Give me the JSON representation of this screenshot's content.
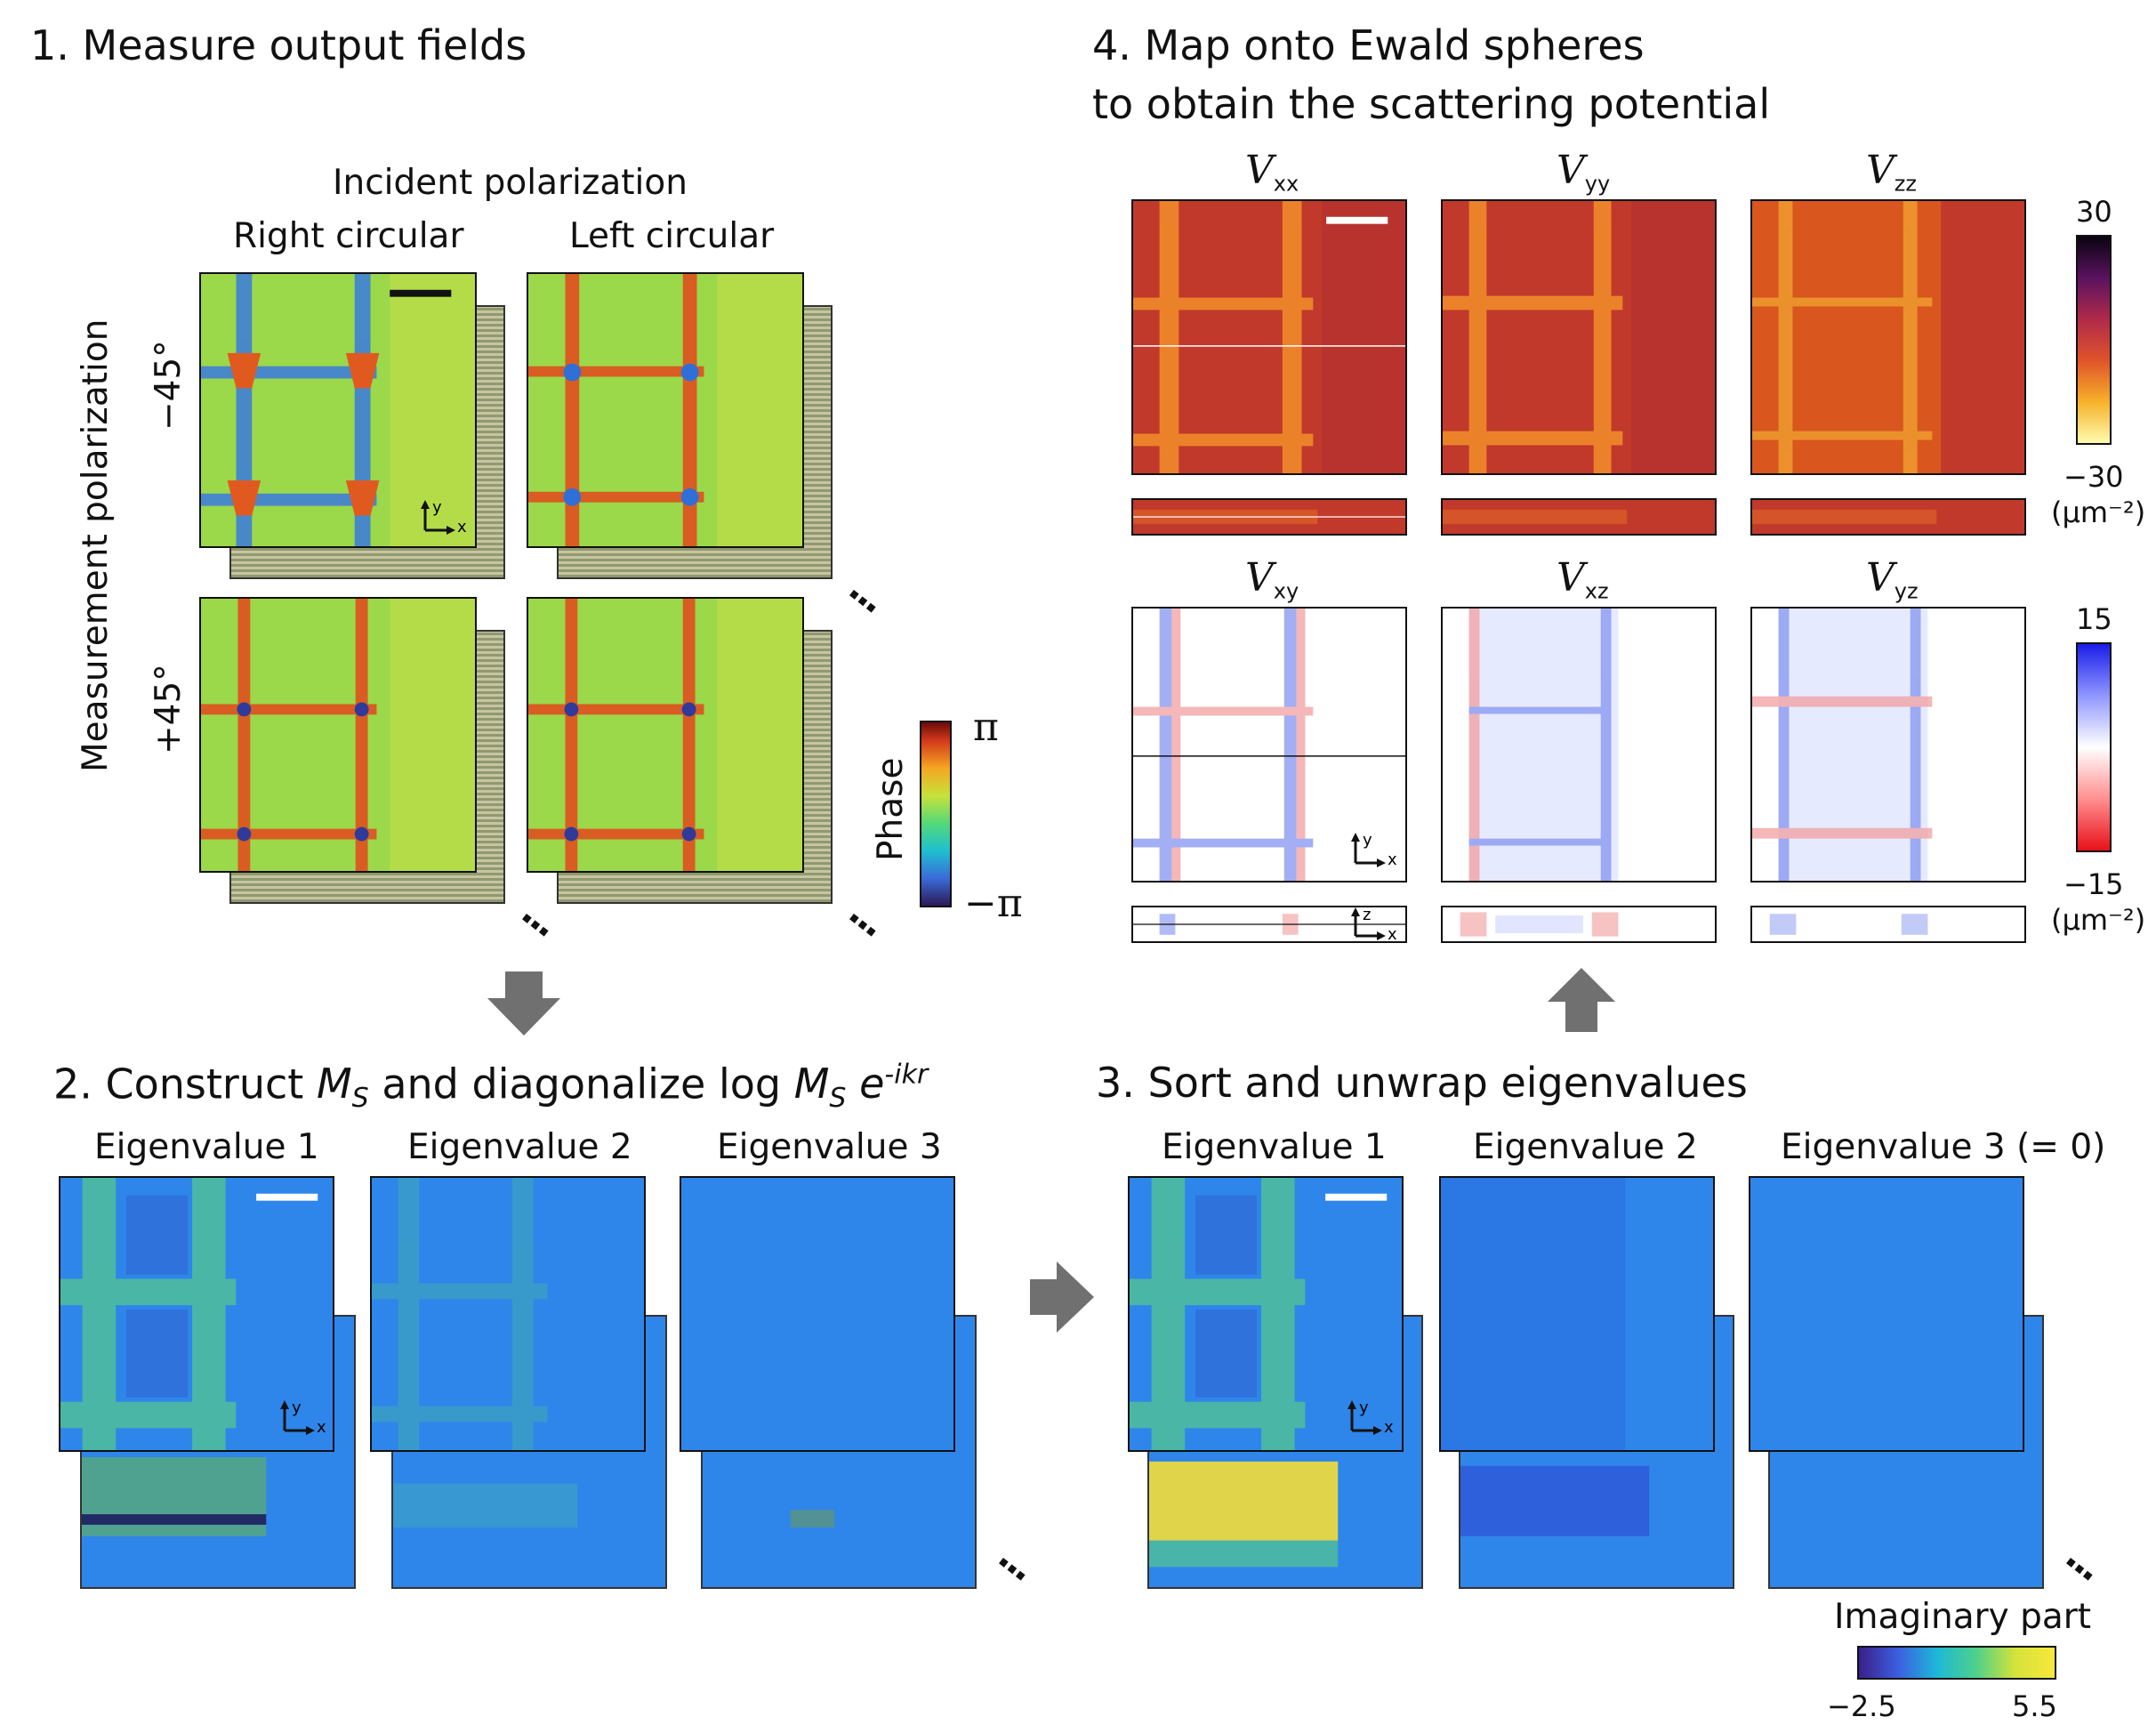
{
  "step1": {
    "title": "1. Measure output fields",
    "incident_label": "Incident polarization",
    "col_right": "Right circular",
    "col_left": "Left circular",
    "measurement_label": "Measurement polarization",
    "row_minus": "−45°",
    "row_plus": "+45°",
    "phase_label": "Phase",
    "phase_max": "π",
    "phase_min": "−π"
  },
  "step2": {
    "title_prefix": "2. Construct ",
    "title_mid": " and diagonalize log ",
    "M": "M",
    "S": "S",
    "e": "e",
    "exp": "-ikr",
    "eig1": "Eigenvalue 1",
    "eig2": "Eigenvalue 2",
    "eig3": "Eigenvalue 3"
  },
  "step3": {
    "title": "3. Sort and unwrap eigenvalues",
    "eig1": "Eigenvalue 1",
    "eig2": "Eigenvalue 2",
    "eig3": "Eigenvalue 3 (= 0)",
    "imag_label": "Imaginary part",
    "imag_min": "−2.5",
    "imag_max": "5.5"
  },
  "step4": {
    "title_line1": "4. Map onto Ewald spheres",
    "title_line2": "to obtain the scattering potential",
    "V": "V",
    "sub_xx": "xx",
    "sub_yy": "yy",
    "sub_zz": "zz",
    "sub_xy": "xy",
    "sub_xz": "xz",
    "sub_yz": "yz",
    "diag_max": "30",
    "diag_min": "−30",
    "off_max": "15",
    "off_min": "−15",
    "unit": "(μm⁻²)"
  },
  "axis": {
    "x": "x",
    "y": "y",
    "z": "z"
  },
  "colors": {
    "phase_green": "#9bd84a",
    "diag_base": "#c0392b",
    "eig_blue": "#2e86ea",
    "arrow_gray": "#707070"
  },
  "icons": [
    "down-arrow-icon",
    "right-arrow-icon",
    "up-arrow-icon",
    "ellipsis-icon",
    "axis-icon"
  ]
}
